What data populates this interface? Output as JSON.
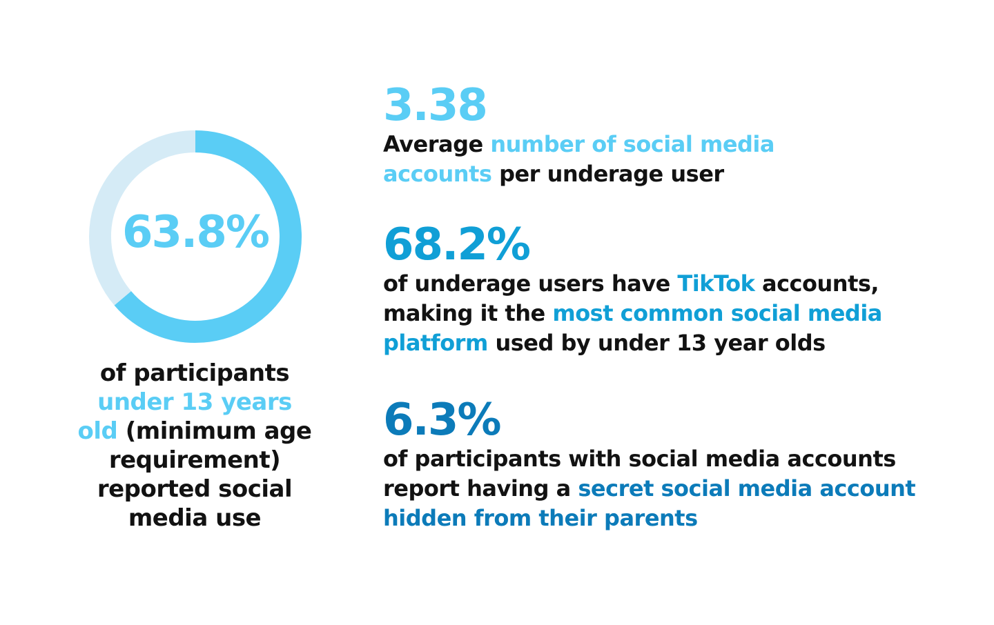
{
  "colors": {
    "light_blue": "#5acdf5",
    "pale_blue": "#d5ebf6",
    "mid_blue": "#109fd6",
    "dark_blue": "#0c7bb9",
    "text": "#121212"
  },
  "chart_data": {
    "type": "pie",
    "variant": "donut",
    "values": [
      63.8,
      36.2
    ],
    "colors": [
      "#5acdf5",
      "#d5ebf6"
    ],
    "center_label": "63.8%"
  },
  "left": {
    "caption_1": "of participants ",
    "caption_hl": "under 13 years old",
    "caption_2": " (minimum age requirement) reported social media use"
  },
  "stat1": {
    "value": "3.38",
    "text_1": "Average ",
    "text_hl": "number of social media accounts",
    "text_2": " per underage user"
  },
  "stat2": {
    "value": "68.2%",
    "text_1": "of underage users have ",
    "text_hl1": "TikTok",
    "text_2": " accounts, making it the ",
    "text_hl2": "most common social media platform",
    "text_3": " used by under 13 year olds"
  },
  "stat3": {
    "value": "6.3%",
    "text_1": "of participants with social media accounts report having a ",
    "text_hl": "secret social media account hidden from their parents"
  }
}
